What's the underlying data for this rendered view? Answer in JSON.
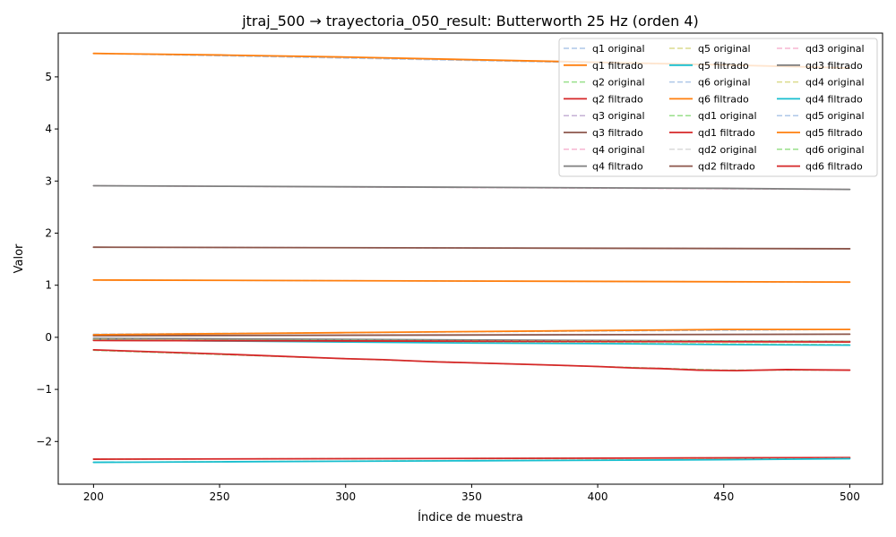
{
  "chart_data": {
    "type": "line",
    "title": "jtraj_500 → trayectoria_050_result: Butterworth 25 Hz (orden 4)",
    "xlabel": "Índice de muestra",
    "ylabel": "Valor",
    "xlim": [
      186,
      513
    ],
    "ylim": [
      -2.82,
      5.84
    ],
    "xticks": [
      200,
      250,
      300,
      350,
      400,
      450,
      500
    ],
    "yticks": [
      -2,
      -1,
      0,
      1,
      2,
      3,
      4,
      5
    ],
    "xtick_labels": [
      "200",
      "250",
      "300",
      "350",
      "400",
      "450",
      "500"
    ],
    "ytick_labels": [
      "−2",
      "−1",
      "0",
      "1",
      "2",
      "3",
      "4",
      "5"
    ],
    "grid": false,
    "legend": {
      "position": "top-right",
      "columns": 3
    },
    "series": [
      {
        "name": "q1 original",
        "style": "dashed",
        "color": "#aec7e8",
        "x": [
          200,
          500
        ],
        "y": [
          5.45,
          5.18
        ]
      },
      {
        "name": "q1 filtrado",
        "style": "solid",
        "color": "#ff7f0e",
        "x": [
          200,
          250,
          300,
          350,
          400,
          450,
          500
        ],
        "y": [
          5.45,
          5.42,
          5.38,
          5.33,
          5.28,
          5.23,
          5.17
        ]
      },
      {
        "name": "q2 original",
        "style": "dashed",
        "color": "#98df8a",
        "x": [
          200,
          500
        ],
        "y": [
          -2.34,
          -2.31
        ]
      },
      {
        "name": "q2 filtrado",
        "style": "solid",
        "color": "#d62728",
        "x": [
          200,
          500
        ],
        "y": [
          -2.34,
          -2.31
        ]
      },
      {
        "name": "q3 original",
        "style": "dashed",
        "color": "#c5b0d5",
        "x": [
          200,
          500
        ],
        "y": [
          1.73,
          1.7
        ]
      },
      {
        "name": "q3 filtrado",
        "style": "solid",
        "color": "#8c564b",
        "x": [
          200,
          500
        ],
        "y": [
          1.73,
          1.7
        ]
      },
      {
        "name": "q4 original",
        "style": "dashed",
        "color": "#f7b6d2",
        "x": [
          200,
          500
        ],
        "y": [
          2.91,
          2.84
        ]
      },
      {
        "name": "q4 filtrado",
        "style": "solid",
        "color": "#7f7f7f",
        "x": [
          200,
          250,
          300,
          350,
          400,
          450,
          500
        ],
        "y": [
          2.91,
          2.9,
          2.89,
          2.88,
          2.87,
          2.86,
          2.84
        ]
      },
      {
        "name": "q5 original",
        "style": "dashed",
        "color": "#dbdb8d",
        "x": [
          200,
          500
        ],
        "y": [
          -2.4,
          -2.33
        ]
      },
      {
        "name": "q5 filtrado",
        "style": "solid",
        "color": "#17becf",
        "x": [
          200,
          250,
          300,
          350,
          400,
          450,
          500
        ],
        "y": [
          -2.4,
          -2.39,
          -2.38,
          -2.37,
          -2.36,
          -2.35,
          -2.33
        ]
      },
      {
        "name": "q6 original",
        "style": "dashed",
        "color": "#aec7e8",
        "x": [
          200,
          500
        ],
        "y": [
          1.1,
          1.06
        ]
      },
      {
        "name": "q6 filtrado",
        "style": "solid",
        "color": "#ff7f0e",
        "x": [
          200,
          500
        ],
        "y": [
          1.1,
          1.06
        ]
      },
      {
        "name": "qd1 original",
        "style": "dashed",
        "color": "#98df8a",
        "x": [
          200,
          250,
          300,
          350,
          400,
          450,
          500
        ],
        "y": [
          -0.25,
          -0.33,
          -0.41,
          -0.49,
          -0.56,
          -0.63,
          -0.63
        ]
      },
      {
        "name": "qd1 filtrado",
        "style": "solid",
        "color": "#d62728",
        "x": [
          200,
          250,
          300,
          315,
          335,
          350,
          380,
          400,
          415,
          425,
          440,
          455,
          475,
          500
        ],
        "y": [
          -0.24,
          -0.32,
          -0.41,
          -0.43,
          -0.47,
          -0.49,
          -0.53,
          -0.56,
          -0.59,
          -0.6,
          -0.63,
          -0.64,
          -0.62,
          -0.63
        ]
      },
      {
        "name": "qd2 original",
        "style": "dashed",
        "color": "#dadada",
        "x": [
          200,
          500
        ],
        "y": [
          0.03,
          0.06
        ]
      },
      {
        "name": "qd2 filtrado",
        "style": "solid",
        "color": "#8c564b",
        "x": [
          200,
          500
        ],
        "y": [
          0.03,
          0.06
        ]
      },
      {
        "name": "qd3 original",
        "style": "dashed",
        "color": "#f7b6d2",
        "x": [
          200,
          500
        ],
        "y": [
          -0.02,
          -0.09
        ]
      },
      {
        "name": "qd3 filtrado",
        "style": "solid",
        "color": "#7f7f7f",
        "x": [
          200,
          500
        ],
        "y": [
          -0.02,
          -0.08
        ]
      },
      {
        "name": "qd4 original",
        "style": "dashed",
        "color": "#dbdb8d",
        "x": [
          200,
          500
        ],
        "y": [
          -0.04,
          -0.14
        ]
      },
      {
        "name": "qd4 filtrado",
        "style": "solid",
        "color": "#17becf",
        "x": [
          200,
          250,
          300,
          350,
          400,
          450,
          500
        ],
        "y": [
          -0.05,
          -0.07,
          -0.09,
          -0.11,
          -0.12,
          -0.14,
          -0.15
        ]
      },
      {
        "name": "qd5 original",
        "style": "dashed",
        "color": "#aec7e8",
        "x": [
          200,
          500
        ],
        "y": [
          0.06,
          0.15
        ]
      },
      {
        "name": "qd5 filtrado",
        "style": "solid",
        "color": "#ff7f0e",
        "x": [
          200,
          250,
          300,
          350,
          400,
          450,
          500
        ],
        "y": [
          0.05,
          0.07,
          0.09,
          0.11,
          0.13,
          0.15,
          0.15
        ]
      },
      {
        "name": "qd6 original",
        "style": "dashed",
        "color": "#98df8a",
        "x": [
          200,
          500
        ],
        "y": [
          -0.05,
          -0.08
        ]
      },
      {
        "name": "qd6 filtrado",
        "style": "solid",
        "color": "#d62728",
        "x": [
          200,
          500
        ],
        "y": [
          -0.06,
          -0.09
        ]
      }
    ]
  }
}
